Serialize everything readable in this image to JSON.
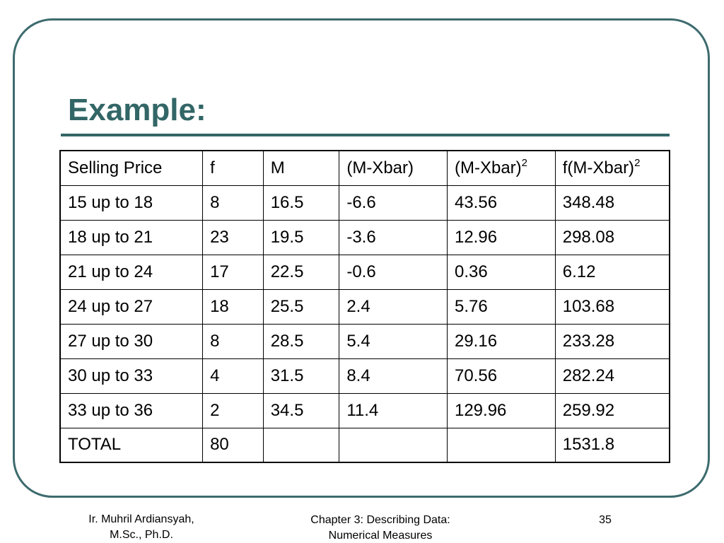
{
  "title": "Example:",
  "table": {
    "headers": [
      {
        "text": "Selling Price",
        "sup": ""
      },
      {
        "text": "f",
        "sup": ""
      },
      {
        "text": "M",
        "sup": ""
      },
      {
        "text": "(M-Xbar)",
        "sup": ""
      },
      {
        "text": "(M-Xbar)",
        "sup": "2"
      },
      {
        "text": "f(M-Xbar)",
        "sup": "2"
      }
    ],
    "rows": [
      [
        "15 up to 18",
        "8",
        "16.5",
        "-6.6",
        "43.56",
        "348.48"
      ],
      [
        "18 up to 21",
        "23",
        "19.5",
        "-3.6",
        "12.96",
        "298.08"
      ],
      [
        "21 up to 24",
        "17",
        "22.5",
        "-0.6",
        "0.36",
        "6.12"
      ],
      [
        "24 up to 27",
        "18",
        "25.5",
        "2.4",
        "5.76",
        "103.68"
      ],
      [
        "27 up to 30",
        "8",
        "28.5",
        "5.4",
        "29.16",
        "233.28"
      ],
      [
        "30 up to 33",
        "4",
        "31.5",
        "8.4",
        "70.56",
        "282.24"
      ],
      [
        "33 up to 36",
        "2",
        "34.5",
        "11.4",
        "129.96",
        "259.92"
      ],
      [
        "TOTAL",
        "80",
        "",
        "",
        "",
        "1531.8"
      ]
    ]
  },
  "footer": {
    "author_line1": "Ir. Muhril Ardiansyah,",
    "author_line2": "M.Sc., Ph.D.",
    "chapter_line1": "Chapter 3: Describing Data:",
    "chapter_line2": "Numerical Measures",
    "page_number": "35"
  },
  "colors": {
    "accent": "#336666",
    "frame": "#3d6b6e"
  }
}
